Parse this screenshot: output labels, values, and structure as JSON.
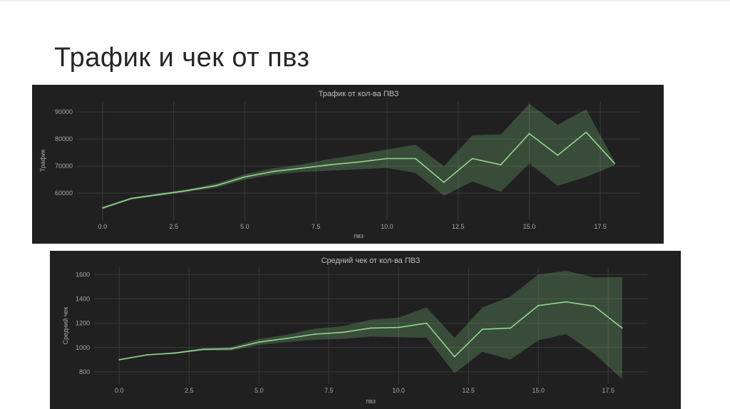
{
  "page": {
    "title": "Трафик и чек от пвз"
  },
  "colors": {
    "background": "#202020",
    "line": "#93d58f",
    "band": "#7fc47f",
    "grid": "#3b3b3b"
  },
  "chart_data": [
    {
      "type": "line",
      "title": "Трафик от кол-ва ПВЗ",
      "xlabel": "пвз",
      "ylabel": "Трафик",
      "xlim": [
        -0.9,
        18.9
      ],
      "ylim": [
        50000,
        94000
      ],
      "xticks": [
        0.0,
        2.5,
        5.0,
        7.5,
        10.0,
        12.5,
        15.0,
        17.5
      ],
      "xtick_labels": [
        "0.0",
        "2.5",
        "5.0",
        "7.5",
        "10.0",
        "12.5",
        "15.0",
        "17.5"
      ],
      "yticks": [
        60000,
        70000,
        80000,
        90000
      ],
      "ytick_labels": [
        "60000",
        "70000",
        "80000",
        "90000"
      ],
      "grid": true,
      "legend": "none",
      "series": [
        {
          "x": [
            0,
            1,
            2,
            3,
            4,
            5,
            6,
            7,
            8,
            9,
            10,
            11,
            12,
            13,
            14,
            15,
            16,
            17,
            18
          ],
          "y": [
            54500,
            58000,
            59500,
            61000,
            62800,
            66000,
            68000,
            69200,
            70500,
            71500,
            72800,
            72800,
            64000,
            72800,
            70500,
            82000,
            74000,
            82500,
            71000
          ],
          "ci_low": [
            54000,
            57600,
            59000,
            60500,
            62000,
            65000,
            66800,
            67800,
            68300,
            68800,
            69300,
            67500,
            59000,
            64300,
            60500,
            71000,
            62700,
            66000,
            70300
          ],
          "ci_high": [
            55000,
            58400,
            60000,
            61500,
            63600,
            67000,
            69200,
            70600,
            72600,
            74300,
            76100,
            77900,
            70000,
            81400,
            81700,
            93000,
            85300,
            91000,
            71700
          ]
        }
      ]
    },
    {
      "type": "line",
      "title": "Средний чек от кол-ва ПВЗ",
      "xlabel": "пвз",
      "ylabel": "Средний чек",
      "xlim": [
        -0.9,
        18.9
      ],
      "ylim": [
        700,
        1660
      ],
      "xticks": [
        0.0,
        2.5,
        5.0,
        7.5,
        10.0,
        12.5,
        15.0,
        17.5
      ],
      "xtick_labels": [
        "0.0",
        "2.5",
        "5.0",
        "7.5",
        "10.0",
        "12.5",
        "15.0",
        "17.5"
      ],
      "yticks": [
        800,
        1000,
        1200,
        1400,
        1600
      ],
      "ytick_labels": [
        "800",
        "1000",
        "1200",
        "1400",
        "1600"
      ],
      "grid": true,
      "legend": "none",
      "series": [
        {
          "x": [
            0,
            1,
            2,
            3,
            4,
            5,
            6,
            7,
            8,
            9,
            10,
            11,
            12,
            13,
            14,
            15,
            16,
            17,
            18
          ],
          "y": [
            900,
            940,
            955,
            985,
            990,
            1045,
            1075,
            1110,
            1125,
            1160,
            1165,
            1200,
            925,
            1150,
            1160,
            1345,
            1375,
            1340,
            1160
          ],
          "ci_low": [
            895,
            935,
            948,
            975,
            975,
            1020,
            1045,
            1065,
            1070,
            1090,
            1085,
            1080,
            790,
            965,
            900,
            1060,
            1110,
            950,
            740
          ],
          "ci_high": [
            905,
            945,
            962,
            995,
            1005,
            1070,
            1105,
            1155,
            1175,
            1230,
            1245,
            1330,
            1080,
            1330,
            1420,
            1600,
            1630,
            1575,
            1580
          ]
        }
      ]
    }
  ]
}
